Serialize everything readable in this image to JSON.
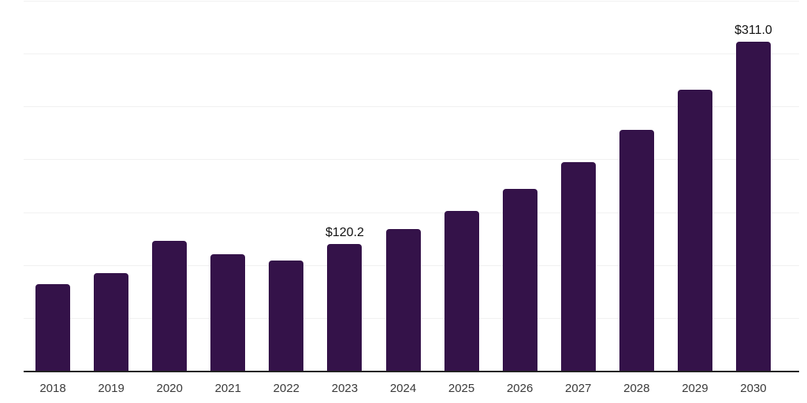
{
  "chart_data": {
    "type": "bar",
    "title": "",
    "xlabel": "",
    "ylabel": "",
    "categories": [
      "2018",
      "2019",
      "2020",
      "2021",
      "2022",
      "2023",
      "2024",
      "2025",
      "2026",
      "2027",
      "2028",
      "2029",
      "2030"
    ],
    "values": [
      82,
      92,
      123,
      110,
      104,
      120.2,
      134,
      151,
      172,
      197,
      228,
      266,
      311
    ],
    "data_labels": {
      "2023": "$120.2",
      "2030": "$311.0"
    },
    "ylim": [
      0,
      350
    ],
    "grid_step": 50,
    "grid": true,
    "y_tick_labels_visible": false,
    "legend": "none",
    "colors": {
      "bar": "#341249",
      "grid": "#f1f1f1",
      "axis_line": "#222222",
      "tick_label": "#3a3a3a",
      "data_label": "#111111"
    }
  }
}
